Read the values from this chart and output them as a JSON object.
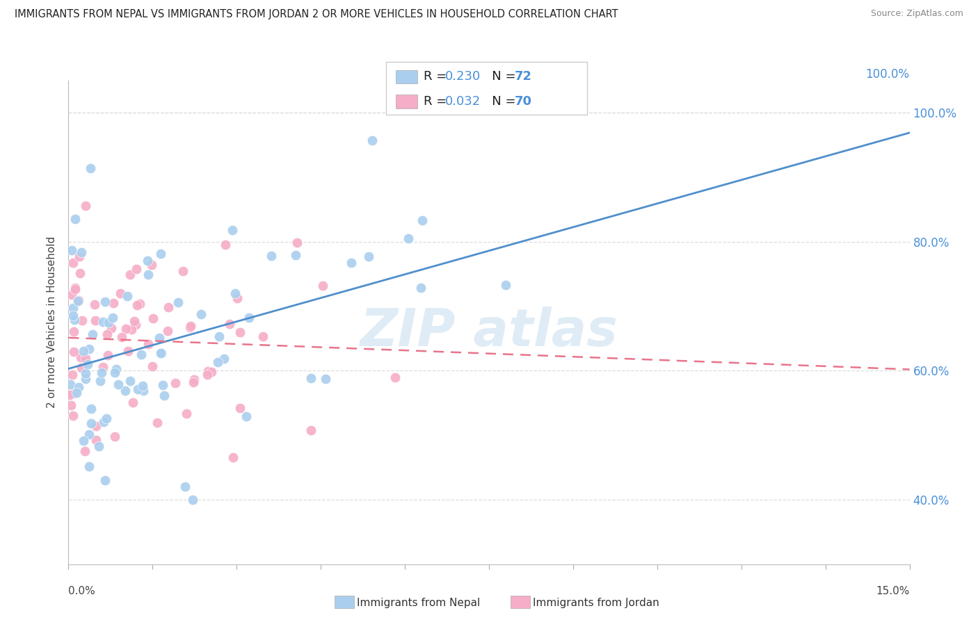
{
  "title": "IMMIGRANTS FROM NEPAL VS IMMIGRANTS FROM JORDAN 2 OR MORE VEHICLES IN HOUSEHOLD CORRELATION CHART",
  "source": "Source: ZipAtlas.com",
  "ylabel": "2 or more Vehicles in Household",
  "nepal_R": 0.23,
  "nepal_N": 72,
  "jordan_R": 0.032,
  "jordan_N": 70,
  "nepal_color": "#aacfee",
  "jordan_color": "#f5adc8",
  "nepal_line_color": "#4f8fcc",
  "jordan_line_color": "#e8748a",
  "legend_nepal": "Immigrants from Nepal",
  "legend_jordan": "Immigrants from Jordan",
  "xmin": 0.0,
  "xmax": 15.0,
  "ymin": 30.0,
  "ymax": 105.0,
  "ytick_vals": [
    40.0,
    60.0,
    80.0,
    100.0
  ],
  "background_color": "#ffffff",
  "grid_color": "#dddddd",
  "watermark": "ZIP atlas",
  "watermark_color": "#c5ddf0"
}
